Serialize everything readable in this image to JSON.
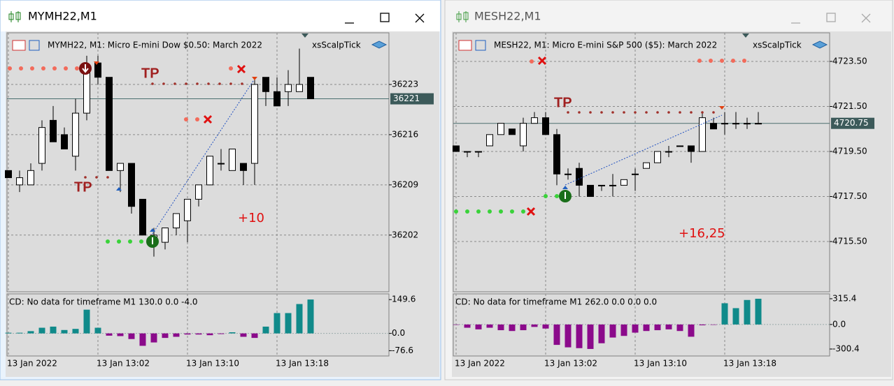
{
  "windows": [
    {
      "title": "MYMH22,M1",
      "chart": {
        "header": "MYMH22, M1:  Micro E-mini Dow $0.50: March 2022",
        "indicator_name": "xsScalpTick",
        "ylim": [
          36194.1,
          36230.2
        ],
        "yticks": [
          36202,
          36209,
          36216,
          36223
        ],
        "current_price": 36221,
        "candles": {
          "open": [
            36211,
            36209,
            36209,
            36212,
            36218,
            36216,
            36213,
            36219,
            36226,
            36224,
            36211,
            36212,
            36207,
            36201,
            36201,
            36203,
            36204,
            36207,
            36209,
            36212,
            36211,
            36212,
            36212,
            36224,
            36222,
            36222,
            36222,
            36224
          ],
          "high": [
            36211,
            36211,
            36212,
            36218,
            36220,
            36217,
            36221,
            36227,
            36227,
            36224,
            36212,
            36212,
            36207,
            36203,
            36203,
            36205,
            36207,
            36209,
            36213,
            36214,
            36214,
            36212,
            36224,
            36224,
            36224,
            36225,
            36228,
            36224
          ],
          "low": [
            36210,
            36208,
            36209,
            36211,
            36215,
            36214,
            36211,
            36218,
            36223,
            36211,
            36208,
            36205,
            36202,
            36199,
            36200,
            36202,
            36201,
            36206,
            36209,
            36211,
            36211,
            36209,
            36209,
            36220,
            36220,
            36220,
            36222,
            36221
          ],
          "close": [
            36210,
            36210,
            36211,
            36217,
            36215,
            36214,
            36219,
            36225,
            36224,
            36211,
            36212,
            36206,
            36202,
            36202,
            36203,
            36205,
            36207,
            36209,
            36213,
            36212,
            36214,
            36211,
            36223,
            36222,
            36220,
            36223,
            36223,
            36221
          ]
        },
        "annotations": [
          "TP",
          "TP",
          "+10"
        ]
      },
      "histogram": {
        "label": "CD: No data for timeframe M1 130.0 0.0 -4.0",
        "ylim": [
          -100,
          175
        ],
        "yticks": [
          -76.6,
          {
            "value": 0,
            "label": "0.0"
          },
          149.6
        ],
        "colors": [
          "#108a8a",
          "#8b0a8b"
        ],
        "values": [
          3,
          3,
          10,
          25,
          30,
          15,
          20,
          105,
          25,
          -10,
          -12,
          -25,
          -55,
          -40,
          -20,
          -15,
          -5,
          -5,
          -8,
          -3,
          5,
          -15,
          -20,
          30,
          90,
          90,
          130,
          150
        ]
      },
      "time_labels": [
        "13 Jan 2022",
        "13 Jan 13:02",
        "13 Jan 13:10",
        "13 Jan 13:18"
      ]
    },
    {
      "title": "MESH22,M1",
      "chart": {
        "header": "MESH22, M1:  Micro E-mini S&P 500 ($5): March 2022",
        "indicator_name": "xsScalpTick",
        "ylim": [
          4713.27,
          4724.77
        ],
        "yticks": [
          {
            "value": 4715.5,
            "label": "4715.50"
          },
          {
            "value": 4717.5,
            "label": "4717.50"
          },
          {
            "value": 4719.5,
            "label": "4719.50"
          },
          {
            "value": 4721.5,
            "label": "4721.50"
          },
          {
            "value": 4723.5,
            "label": "4723.50"
          }
        ],
        "current_price": 4720.75,
        "candles": {
          "open": [
            4719.75,
            4719.5,
            4719.5,
            4719.75,
            4720.25,
            4720.5,
            4719.75,
            4720.75,
            4721,
            4720.25,
            4718.5,
            4718.75,
            4718,
            4718,
            4718,
            4718,
            4718.5,
            4718.75,
            4719,
            4719.5,
            4719.75,
            4719.75,
            4719.5,
            4720.75,
            4720.75,
            4720.75,
            4720.75,
            4720.75
          ],
          "high": [
            4719.75,
            4719.5,
            4719.5,
            4720.25,
            4720.75,
            4720.5,
            4721,
            4721.25,
            4721.25,
            4720.5,
            4718.75,
            4719,
            4718,
            4718,
            4718.5,
            4718.25,
            4718.75,
            4719,
            4719.5,
            4719.75,
            4719.75,
            4719.75,
            4721.25,
            4721,
            4721.25,
            4721.25,
            4721,
            4721.25
          ],
          "low": [
            4719.5,
            4719.25,
            4719.25,
            4719.75,
            4720.25,
            4720.25,
            4719.5,
            4720.75,
            4720.25,
            4718,
            4718.25,
            4717.5,
            4717.5,
            4717.75,
            4717.5,
            4718,
            4717.75,
            4718.75,
            4719,
            4719.25,
            4719.75,
            4719,
            4719.5,
            4720.5,
            4720.25,
            4720.5,
            4720.5,
            4720.75
          ],
          "close": [
            4719.5,
            4719.5,
            4719.5,
            4720.25,
            4720.75,
            4720.25,
            4720.75,
            4721,
            4720.25,
            4718.5,
            4718.5,
            4718,
            4717.5,
            4718,
            4718,
            4718.25,
            4718.5,
            4719,
            4719.5,
            4719.5,
            4719.75,
            4719.5,
            4721,
            4720.5,
            4720.75,
            4720.75,
            4720.75,
            4720.75
          ]
        },
        "annotations": [
          "TP",
          "+16,25"
        ]
      },
      "histogram": {
        "label": "CD: No data for timeframe M1 262.0 0.0 0.0 0.0",
        "ylim": [
          -386,
          375
        ],
        "yticks": [
          -300.4,
          {
            "value": 0,
            "label": "0.0"
          },
          315.4
        ],
        "colors": [
          "#108a8a",
          "#8b0a8b"
        ],
        "values": [
          -5,
          -40,
          -60,
          -40,
          -70,
          -80,
          -70,
          -30,
          -50,
          -250,
          -280,
          -290,
          -300,
          -230,
          -160,
          -140,
          -100,
          -80,
          -70,
          -60,
          -80,
          -150,
          -10,
          -5,
          260,
          200,
          300,
          315
        ]
      },
      "time_labels": [
        "13 Jan 2022",
        "13 Jan 13:02",
        "13 Jan 13:10",
        "13 Jan 13:18"
      ]
    }
  ]
}
